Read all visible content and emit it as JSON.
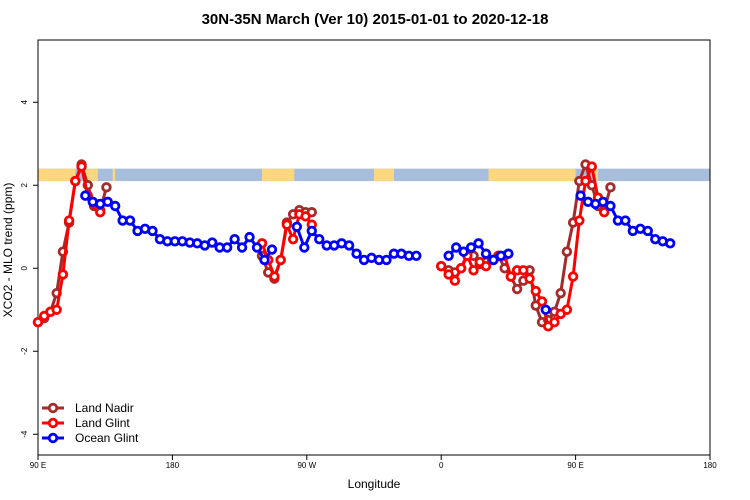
{
  "chart_data": {
    "type": "line",
    "title": "30N-35N March (Ver 10)   2015-01-01 to 2020-12-18",
    "xlabel": "Longitude",
    "ylabel": "XCO2 - MLO trend (ppm)",
    "xlim": [
      -90,
      180
    ],
    "ylim": [
      -4.5,
      5.5
    ],
    "x_ticks": [
      {
        "value": -90,
        "label": "90 E"
      },
      {
        "value": -36,
        "label": "180"
      },
      {
        "value": 18,
        "label": "90 W"
      },
      {
        "value": 72,
        "label": "0"
      },
      {
        "value": 126,
        "label": "90 E"
      },
      {
        "value": 180,
        "label": "180"
      }
    ],
    "y_ticks": [
      {
        "value": -4,
        "label": "-4"
      },
      {
        "value": -2,
        "label": "-2"
      },
      {
        "value": 0,
        "label": "0"
      },
      {
        "value": 2,
        "label": "2"
      },
      {
        "value": 4,
        "label": "4"
      }
    ],
    "land_ocean_band": {
      "y_min": 2.1,
      "y_max": 2.4,
      "ocean_color": "#a6bddb",
      "land_color": "#fcd77f",
      "land_ranges": [
        [
          -90,
          -75
        ],
        [
          -72,
          -66
        ],
        [
          -60,
          -59
        ],
        [
          0,
          13
        ],
        [
          45,
          53
        ],
        [
          91,
          126
        ],
        [
          133,
          135
        ]
      ]
    },
    "series": [
      {
        "name": "Land Nadir",
        "color": "#a52a2a",
        "points": [
          [
            -90,
            -1.3
          ],
          [
            -87.5,
            -1.2
          ],
          [
            -85,
            -1.05
          ],
          [
            -82.5,
            -0.6
          ],
          [
            -80,
            0.4
          ],
          [
            -77.5,
            1.1
          ],
          [
            -75,
            2.1
          ],
          [
            -72.5,
            2.5
          ],
          [
            -70,
            2.0
          ],
          [
            -67.5,
            1.5
          ],
          [
            -65,
            1.4
          ],
          [
            -62.5,
            1.95
          ],
          [
            0,
            0.3
          ],
          [
            2.5,
            -0.1
          ],
          [
            5,
            -0.25
          ],
          [
            7.5,
            0.2
          ],
          [
            10,
            1.1
          ],
          [
            12.5,
            1.3
          ],
          [
            15,
            1.4
          ],
          [
            17.5,
            1.35
          ],
          [
            20,
            1.35
          ],
          [
            72,
            0.05
          ],
          [
            75,
            -0.05
          ],
          [
            77.5,
            -0.1
          ],
          [
            80,
            0.0
          ],
          [
            82.5,
            0.35
          ],
          [
            85,
            0.3
          ],
          [
            87.5,
            0.1
          ],
          [
            90,
            0.15
          ],
          [
            92.5,
            0.2
          ],
          [
            95,
            0.3
          ],
          [
            97.5,
            0.0
          ],
          [
            100,
            -0.2
          ],
          [
            102.5,
            -0.5
          ],
          [
            105,
            -0.3
          ],
          [
            107.5,
            -0.05
          ],
          [
            110,
            -0.9
          ],
          [
            112.5,
            -1.3
          ],
          [
            115,
            -1.25
          ],
          [
            117.5,
            -1.05
          ],
          [
            120,
            -0.6
          ],
          [
            122.5,
            0.4
          ],
          [
            125,
            1.1
          ],
          [
            127.5,
            2.1
          ],
          [
            130,
            2.5
          ],
          [
            132.5,
            2.0
          ],
          [
            135,
            1.5
          ],
          [
            137.5,
            1.4
          ],
          [
            140,
            1.95
          ]
        ]
      },
      {
        "name": "Land Glint",
        "color": "#ff0000",
        "points": [
          [
            -90,
            -1.3
          ],
          [
            -87.5,
            -1.15
          ],
          [
            -85,
            -1.05
          ],
          [
            -82.5,
            -1.0
          ],
          [
            -80,
            -0.15
          ],
          [
            -77.5,
            1.15
          ],
          [
            -75,
            2.1
          ],
          [
            -72.5,
            2.45
          ],
          [
            -70,
            1.75
          ],
          [
            -67.5,
            1.55
          ],
          [
            -65,
            1.35
          ],
          [
            0,
            0.6
          ],
          [
            2.5,
            0.2
          ],
          [
            5,
            -0.2
          ],
          [
            7.5,
            0.2
          ],
          [
            10,
            1.05
          ],
          [
            12.5,
            0.7
          ],
          [
            15,
            1.3
          ],
          [
            17.5,
            1.25
          ],
          [
            20,
            1.05
          ],
          [
            72,
            0.05
          ],
          [
            75,
            -0.15
          ],
          [
            77.5,
            -0.3
          ],
          [
            80,
            0.0
          ],
          [
            82.5,
            0.3
          ],
          [
            85,
            -0.05
          ],
          [
            87.5,
            0.15
          ],
          [
            90,
            0.05
          ],
          [
            92.5,
            0.2
          ],
          [
            95,
            0.3
          ],
          [
            97.5,
            0.3
          ],
          [
            100,
            -0.2
          ],
          [
            102.5,
            -0.05
          ],
          [
            105,
            -0.05
          ],
          [
            107.5,
            -0.25
          ],
          [
            110,
            -0.55
          ],
          [
            112.5,
            -0.8
          ],
          [
            115,
            -1.4
          ],
          [
            117.5,
            -1.3
          ],
          [
            120,
            -1.1
          ],
          [
            122.5,
            -1.0
          ],
          [
            125,
            -0.2
          ],
          [
            127.5,
            1.15
          ],
          [
            130,
            2.1
          ],
          [
            132.5,
            2.45
          ],
          [
            135,
            1.7
          ],
          [
            137.5,
            1.35
          ]
        ]
      },
      {
        "name": "Ocean Glint",
        "color": "#0000ff",
        "points": [
          [
            -71,
            1.75
          ],
          [
            -68,
            1.6
          ],
          [
            -65,
            1.55
          ],
          [
            -62,
            1.6
          ],
          [
            -59,
            1.5
          ],
          [
            -56,
            1.15
          ],
          [
            -53,
            1.15
          ],
          [
            -50,
            0.9
          ],
          [
            -47,
            0.95
          ],
          [
            -44,
            0.9
          ],
          [
            -41,
            0.7
          ],
          [
            -38,
            0.65
          ],
          [
            -35,
            0.65
          ],
          [
            -32,
            0.65
          ],
          [
            -29,
            0.62
          ],
          [
            -26,
            0.6
          ],
          [
            -23,
            0.55
          ],
          [
            -20,
            0.62
          ],
          [
            -17,
            0.5
          ],
          [
            -14,
            0.5
          ],
          [
            -11,
            0.7
          ],
          [
            -8,
            0.5
          ],
          [
            -5,
            0.75
          ],
          [
            -2,
            0.5
          ],
          [
            1,
            0.2
          ],
          [
            4,
            0.45
          ],
          [
            14,
            1.0
          ],
          [
            17,
            0.5
          ],
          [
            20,
            0.9
          ],
          [
            23,
            0.7
          ],
          [
            26,
            0.55
          ],
          [
            29,
            0.55
          ],
          [
            32,
            0.6
          ],
          [
            35,
            0.55
          ],
          [
            38,
            0.35
          ],
          [
            41,
            0.2
          ],
          [
            44,
            0.25
          ],
          [
            47,
            0.2
          ],
          [
            50,
            0.2
          ],
          [
            53,
            0.35
          ],
          [
            56,
            0.35
          ],
          [
            59,
            0.3
          ],
          [
            62,
            0.3
          ],
          [
            75,
            0.3
          ],
          [
            78,
            0.5
          ],
          [
            81,
            0.4
          ],
          [
            84,
            0.5
          ],
          [
            87,
            0.6
          ],
          [
            90,
            0.35
          ],
          [
            93,
            0.2
          ],
          [
            96,
            0.3
          ],
          [
            99,
            0.35
          ],
          [
            114,
            -1.0
          ],
          [
            128,
            1.75
          ],
          [
            131,
            1.6
          ],
          [
            134,
            1.55
          ],
          [
            137,
            1.6
          ],
          [
            140,
            1.5
          ],
          [
            143,
            1.15
          ],
          [
            146,
            1.15
          ],
          [
            149,
            0.9
          ],
          [
            152,
            0.95
          ],
          [
            155,
            0.9
          ],
          [
            158,
            0.7
          ],
          [
            161,
            0.65
          ],
          [
            164,
            0.6
          ]
        ]
      }
    ],
    "legend": {
      "position": "bottom-left",
      "entries": [
        "Land Nadir",
        "Land Glint",
        "Ocean Glint"
      ]
    }
  }
}
